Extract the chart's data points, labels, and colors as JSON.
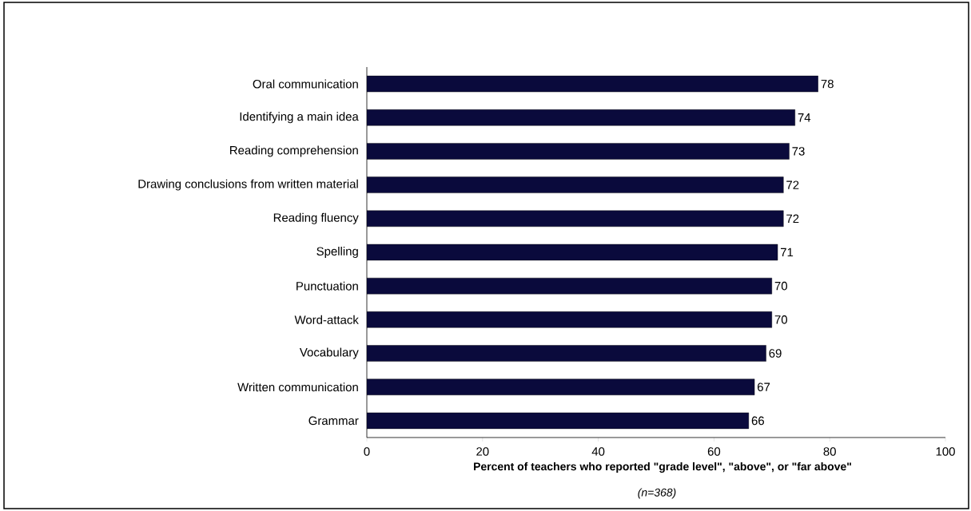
{
  "chart_data": {
    "type": "bar",
    "orientation": "horizontal",
    "categories": [
      "Oral communication",
      "Identifying a main idea",
      "Reading comprehension",
      "Drawing conclusions from written material",
      "Reading fluency",
      "Spelling",
      "Punctuation",
      "Word-attack",
      "Vocabulary",
      "Written communication",
      "Grammar"
    ],
    "values": [
      78,
      74,
      73,
      72,
      72,
      71,
      70,
      70,
      69,
      67,
      66
    ],
    "color": "#0a0a3c",
    "xlim": [
      0,
      100
    ],
    "xticks": [
      0,
      20,
      40,
      60,
      80,
      100
    ],
    "data_labels": true,
    "xlabel": "Percent of teachers who reported \"grade level\", \"above\", or \"far above\"",
    "annotations": [
      "*(n=368)*"
    ]
  }
}
